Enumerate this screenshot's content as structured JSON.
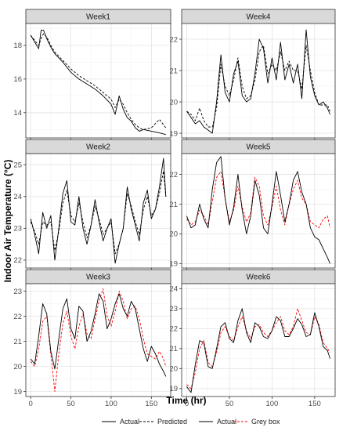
{
  "chart_data": {
    "type": "line",
    "xlabel": "Time (hr)",
    "ylabel": "Indoor Air Temperature (°C)",
    "legend": [
      {
        "label": "Actual",
        "color": "#000000",
        "dash": "solid"
      },
      {
        "label": "Predicted",
        "color": "#000000",
        "dash": "dashed"
      },
      {
        "label": "Actual",
        "color": "#000000",
        "dash": "solid"
      },
      {
        "label": "Grey box",
        "color": "#ff0000",
        "dash": "dashed"
      }
    ],
    "legend_position": "bottom",
    "grid": true,
    "panels": [
      {
        "title": "Week1",
        "xlim": [
          -6,
          174
        ],
        "ylim": [
          12.5,
          19.3
        ],
        "xticks": [
          0,
          50,
          100,
          150
        ],
        "yticks": [
          14,
          16,
          18
        ],
        "pred_color": "#000000",
        "pred_dash": "dashed",
        "x": [
          0,
          5,
          10,
          13,
          16,
          20,
          25,
          30,
          40,
          50,
          60,
          70,
          80,
          90,
          100,
          105,
          110,
          115,
          120,
          125,
          130,
          135,
          140,
          150,
          160,
          168
        ],
        "actual": [
          18.6,
          18.2,
          17.8,
          18.9,
          18.9,
          18.4,
          17.9,
          17.5,
          17.0,
          16.4,
          16.0,
          15.7,
          15.4,
          15.0,
          14.5,
          13.9,
          15.0,
          14.2,
          13.7,
          13.5,
          13.1,
          12.9,
          13.0,
          12.9,
          12.8,
          12.7
        ],
        "predicted": [
          18.6,
          18.3,
          18.0,
          18.4,
          18.7,
          18.5,
          18.0,
          17.6,
          17.1,
          16.6,
          16.2,
          15.9,
          15.6,
          15.2,
          14.8,
          14.3,
          14.8,
          14.5,
          14.0,
          13.6,
          13.3,
          13.1,
          13.0,
          13.1,
          13.6,
          13.1
        ]
      },
      {
        "title": "Week4",
        "xlim": [
          -6,
          174
        ],
        "ylim": [
          18.85,
          22.5
        ],
        "xticks": [
          0,
          50,
          100,
          150
        ],
        "yticks": [
          19,
          20,
          21,
          22
        ],
        "pred_color": "#000000",
        "pred_dash": "dashed",
        "x": [
          0,
          5,
          10,
          15,
          20,
          25,
          30,
          35,
          40,
          45,
          50,
          55,
          60,
          65,
          70,
          75,
          80,
          85,
          90,
          95,
          100,
          105,
          110,
          115,
          120,
          125,
          130,
          135,
          140,
          145,
          150,
          155,
          160,
          165,
          168
        ],
        "actual": [
          19.7,
          19.5,
          19.3,
          19.4,
          19.2,
          19.1,
          19.0,
          20.0,
          21.5,
          20.3,
          20.0,
          20.9,
          21.3,
          20.2,
          20.0,
          20.1,
          20.9,
          22.0,
          21.7,
          20.6,
          21.4,
          20.7,
          21.9,
          20.7,
          21.2,
          20.6,
          21.2,
          20.1,
          22.3,
          20.8,
          20.2,
          19.9,
          20.0,
          19.8,
          19.6
        ],
        "predicted": [
          19.7,
          19.6,
          19.4,
          19.8,
          19.4,
          19.2,
          19.2,
          19.8,
          21.2,
          20.5,
          20.2,
          20.7,
          21.4,
          20.5,
          20.1,
          20.2,
          20.7,
          21.6,
          21.8,
          20.9,
          21.2,
          21.0,
          21.6,
          21.0,
          21.3,
          21.0,
          21.0,
          20.4,
          21.8,
          21.0,
          20.3,
          19.9,
          19.9,
          19.9,
          19.7
        ]
      },
      {
        "title": "Week2",
        "xlim": [
          -6,
          174
        ],
        "ylim": [
          21.75,
          25.35
        ],
        "xticks": [
          0,
          50,
          100,
          150
        ],
        "yticks": [
          22,
          23,
          24,
          25
        ],
        "pred_color": "#000000",
        "pred_dash": "dashed",
        "x": [
          0,
          5,
          10,
          15,
          20,
          25,
          30,
          35,
          40,
          45,
          50,
          55,
          60,
          65,
          70,
          75,
          80,
          85,
          90,
          95,
          100,
          105,
          110,
          115,
          120,
          125,
          130,
          135,
          140,
          145,
          150,
          155,
          160,
          165,
          168
        ],
        "actual": [
          23.3,
          22.8,
          22.2,
          23.5,
          23.0,
          23.4,
          22.0,
          23.0,
          24.1,
          24.5,
          23.2,
          23.1,
          24.0,
          23.0,
          22.5,
          23.1,
          23.9,
          23.2,
          22.6,
          23.0,
          23.3,
          21.9,
          22.5,
          23.0,
          24.3,
          23.6,
          23.1,
          22.6,
          23.8,
          24.2,
          23.3,
          23.6,
          24.3,
          25.2,
          24.0
        ],
        "predicted": [
          23.2,
          22.9,
          22.5,
          23.2,
          23.1,
          23.2,
          22.3,
          22.9,
          23.8,
          24.2,
          23.4,
          23.2,
          23.8,
          23.2,
          22.7,
          23.1,
          23.7,
          23.3,
          22.8,
          23.0,
          23.2,
          22.2,
          22.5,
          23.0,
          24.1,
          23.7,
          23.2,
          22.8,
          23.6,
          24.0,
          23.4,
          23.6,
          24.1,
          24.8,
          24.0
        ]
      },
      {
        "title": "Week5",
        "xlim": [
          -6,
          174
        ],
        "ylim": [
          18.85,
          22.7
        ],
        "xticks": [
          0,
          50,
          100,
          150
        ],
        "yticks": [
          19,
          20,
          21,
          22
        ],
        "pred_color": "#ff0000",
        "pred_dash": "dashed",
        "x": [
          0,
          5,
          10,
          15,
          20,
          25,
          30,
          35,
          40,
          45,
          50,
          55,
          60,
          65,
          70,
          75,
          80,
          85,
          90,
          95,
          100,
          105,
          110,
          115,
          120,
          125,
          130,
          135,
          140,
          145,
          150,
          155,
          160,
          165,
          168
        ],
        "actual": [
          20.6,
          20.2,
          20.3,
          21.0,
          20.5,
          20.2,
          21.5,
          22.4,
          22.6,
          21.2,
          20.3,
          20.9,
          22.0,
          20.8,
          20.0,
          20.6,
          21.8,
          21.3,
          20.2,
          20.0,
          21.0,
          22.1,
          21.3,
          20.4,
          21.0,
          21.8,
          22.1,
          21.4,
          21.0,
          20.2,
          19.9,
          19.8,
          19.5,
          19.2,
          19.0
        ],
        "predicted": [
          20.5,
          20.3,
          20.4,
          20.8,
          20.6,
          20.3,
          21.1,
          21.9,
          22.1,
          21.2,
          20.4,
          20.8,
          21.6,
          20.9,
          20.4,
          20.7,
          21.9,
          21.6,
          20.6,
          20.3,
          20.9,
          21.6,
          20.8,
          20.3,
          21.0,
          21.5,
          21.8,
          21.2,
          21.0,
          20.4,
          20.3,
          20.2,
          20.5,
          20.6,
          20.2
        ]
      },
      {
        "title": "Week3",
        "xlim": [
          -6,
          174
        ],
        "ylim": [
          18.8,
          23.3
        ],
        "xticks": [
          0,
          50,
          100,
          150
        ],
        "yticks": [
          19,
          20,
          21,
          22,
          23
        ],
        "pred_color": "#ff0000",
        "pred_dash": "dashed",
        "x": [
          0,
          5,
          10,
          15,
          20,
          25,
          30,
          35,
          40,
          45,
          50,
          55,
          60,
          65,
          70,
          75,
          80,
          85,
          90,
          95,
          100,
          105,
          110,
          115,
          120,
          125,
          130,
          135,
          140,
          145,
          150,
          155,
          160,
          165,
          168
        ],
        "actual": [
          20.3,
          20.1,
          21.2,
          22.5,
          22.1,
          20.6,
          19.9,
          21.1,
          22.3,
          22.7,
          21.5,
          21.1,
          22.4,
          22.2,
          21.0,
          21.4,
          22.1,
          22.9,
          22.6,
          21.5,
          21.9,
          22.5,
          22.9,
          22.3,
          22.0,
          22.6,
          22.3,
          21.5,
          20.7,
          20.2,
          20.8,
          20.5,
          20.1,
          19.8,
          19.6
        ],
        "predicted": [
          20.2,
          20.0,
          20.7,
          21.8,
          22.0,
          20.5,
          19.0,
          20.5,
          21.7,
          22.2,
          21.2,
          20.7,
          21.6,
          22.1,
          21.3,
          21.1,
          21.9,
          22.6,
          23.1,
          22.0,
          21.6,
          22.2,
          23.0,
          22.6,
          21.9,
          22.3,
          22.4,
          21.9,
          21.1,
          20.5,
          20.4,
          20.3,
          20.6,
          20.3,
          20.0
        ]
      },
      {
        "title": "Week6",
        "xlim": [
          -6,
          174
        ],
        "ylim": [
          18.6,
          24.25
        ],
        "xticks": [
          0,
          50,
          100,
          150
        ],
        "yticks": [
          19,
          20,
          21,
          22,
          23,
          24
        ],
        "pred_color": "#ff0000",
        "pred_dash": "dashed",
        "x": [
          0,
          5,
          10,
          15,
          20,
          25,
          30,
          35,
          40,
          45,
          50,
          55,
          60,
          65,
          70,
          75,
          80,
          85,
          90,
          95,
          100,
          105,
          110,
          115,
          120,
          125,
          130,
          135,
          140,
          145,
          150,
          155,
          160,
          165,
          168
        ],
        "actual": [
          19.1,
          18.8,
          20.2,
          21.4,
          21.3,
          20.1,
          20.0,
          21.0,
          22.1,
          22.3,
          21.5,
          21.3,
          22.4,
          23.0,
          21.8,
          21.3,
          22.3,
          22.1,
          21.6,
          21.5,
          21.9,
          22.6,
          22.4,
          21.6,
          21.6,
          22.0,
          22.5,
          22.2,
          21.6,
          21.7,
          22.8,
          22.1,
          21.1,
          20.9,
          20.5
        ],
        "predicted": [
          19.2,
          19.0,
          19.8,
          21.0,
          21.4,
          20.3,
          20.1,
          20.8,
          21.8,
          22.1,
          21.6,
          21.4,
          22.1,
          22.6,
          21.9,
          21.5,
          22.1,
          22.2,
          21.8,
          21.6,
          21.9,
          22.3,
          22.6,
          21.9,
          21.7,
          22.1,
          23.0,
          22.4,
          21.8,
          21.7,
          22.6,
          22.2,
          21.3,
          21.0,
          20.8
        ]
      }
    ]
  }
}
